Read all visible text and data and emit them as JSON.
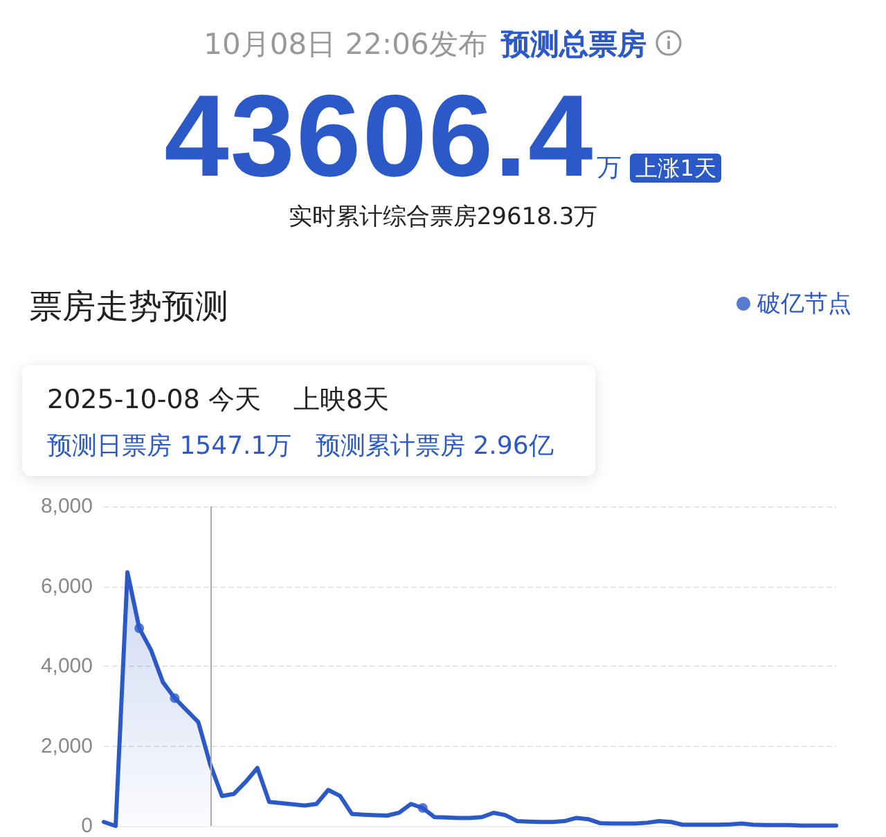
{
  "chart_data": {
    "type": "line",
    "title": "票房走势预测",
    "annotations": [
      "10月08日 22:06发布",
      "预测总票房",
      "43606.4",
      "万",
      "上涨1天",
      "实时累计综合票房29618.3万",
      "2025-10-08 今天",
      "上映8天",
      "预测日票房 1547.1万",
      "预测累计票房 2.96亿"
    ],
    "categories": [
      null,
      null,
      null,
      null,
      null,
      null,
      null,
      null,
      null,
      null,
      null,
      null,
      null,
      null,
      null,
      null,
      null,
      null,
      null,
      null,
      null,
      null,
      null,
      null,
      null,
      null,
      null,
      null,
      null,
      null,
      null,
      null,
      null,
      null,
      null,
      null,
      null,
      null,
      null,
      null,
      null,
      null,
      null,
      null,
      null,
      null,
      null,
      null,
      null,
      null,
      null,
      null,
      null,
      null,
      null,
      null,
      null,
      null,
      null,
      null,
      null,
      null,
      null
    ],
    "series": [
      {
        "type": "area",
        "color": "#2b5ac8",
        "marker": "none",
        "values": [
          100,
          0,
          6350,
          4950,
          4400,
          3600,
          3200,
          2900,
          2600,
          1547.1,
          null,
          null,
          null,
          null,
          null,
          null,
          null,
          null,
          null,
          null,
          null,
          null,
          null,
          null,
          null,
          null,
          null,
          null,
          null,
          null,
          null,
          null,
          null,
          null,
          null,
          null,
          null,
          null,
          null,
          null,
          null,
          null,
          null,
          null,
          null,
          null,
          null,
          null,
          null,
          null,
          null,
          null,
          null,
          null,
          null,
          null,
          null,
          null,
          null,
          null,
          null,
          null,
          null
        ]
      },
      {
        "color": "#2b5ac8",
        "marker": "none",
        "values": [
          null,
          null,
          null,
          null,
          null,
          null,
          null,
          null,
          null,
          1547.1,
          750,
          800,
          1100,
          1450,
          600,
          570,
          540,
          510,
          550,
          900,
          750,
          300,
          280,
          270,
          260,
          330,
          550,
          450,
          220,
          210,
          200,
          200,
          220,
          330,
          270,
          120,
          110,
          100,
          100,
          120,
          200,
          170,
          70,
          60,
          60,
          60,
          80,
          120,
          100,
          30,
          30,
          30,
          30,
          40,
          60,
          30,
          20,
          20,
          20,
          10,
          10,
          10,
          10
        ]
      },
      {
        "type": "scatter",
        "name": "破亿节点",
        "color": "#2b5ac8",
        "marker": "circle",
        "values": [
          null,
          null,
          null,
          4950,
          null,
          null,
          3200,
          null,
          null,
          null,
          null,
          null,
          null,
          null,
          null,
          null,
          null,
          null,
          null,
          null,
          null,
          null,
          null,
          null,
          null,
          null,
          null,
          450,
          null,
          null,
          null,
          null,
          null,
          null,
          null,
          null,
          null,
          null,
          null,
          null,
          null,
          null,
          null,
          null,
          null,
          null,
          null,
          null,
          null,
          null,
          null,
          null,
          null,
          null,
          null,
          null,
          null,
          null,
          null,
          null,
          null,
          null,
          null
        ]
      }
    ],
    "ylim": [
      0,
      8000
    ],
    "yticks": [
      0,
      {
        "value": 2000,
        "label": "2,000"
      },
      {
        "value": 4000,
        "label": "4,000"
      },
      {
        "value": 6000,
        "label": "6,000"
      },
      {
        "value": 8000,
        "label": "8,000"
      }
    ],
    "grid": "y",
    "legend": "top right",
    "tick_labels": "y"
  }
}
